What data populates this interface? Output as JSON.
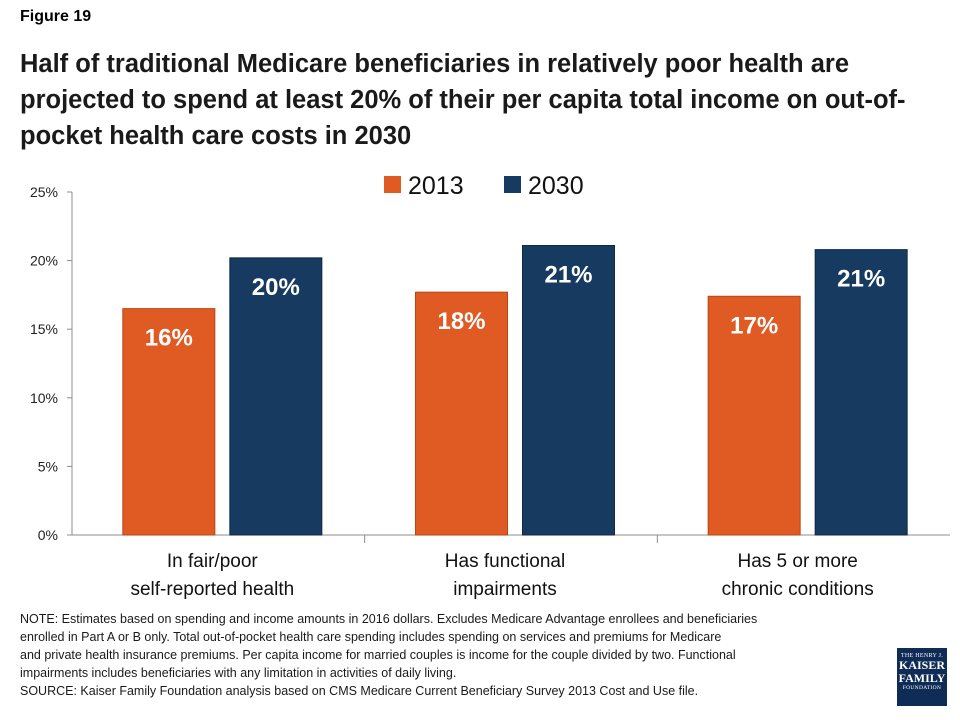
{
  "figure_label": "Figure 19",
  "title": "Half of traditional Medicare beneficiaries in relatively poor health are projected to spend at least 20% of their per capita total income on out-of-pocket health care costs in 2030",
  "note_lines": [
    "NOTE: Estimates based on spending and income amounts in 2016 dollars. Excludes Medicare Advantage enrollees and beneficiaries",
    "enrolled in Part A or B only. Total out-of-pocket health care spending includes spending on services and premiums for Medicare",
    "and private health insurance premiums. Per capita income for married couples is income for the couple divided by two. Functional",
    "impairments includes beneficiaries with any limitation in activities of daily living.",
    "SOURCE: Kaiser Family Foundation analysis based on CMS Medicare Current Beneficiary Survey 2013 Cost and Use file."
  ],
  "logo": {
    "line1": "THE HENRY J.",
    "line2": "KAISER",
    "line3": "FAMILY",
    "line4": "FOUNDATION"
  },
  "colors": {
    "series_2013": "#e05a23",
    "series_2030": "#173a60"
  },
  "chart_data": {
    "type": "bar",
    "categories": [
      [
        "In fair/poor",
        "self-reported health"
      ],
      [
        "Has functional",
        "impairments"
      ],
      [
        "Has 5 or more",
        "chronic conditions"
      ]
    ],
    "series": [
      {
        "name": "2013",
        "values": [
          16.5,
          17.7,
          17.4
        ],
        "labels": [
          "16%",
          "18%",
          "17%"
        ]
      },
      {
        "name": "2030",
        "values": [
          20.2,
          21.1,
          20.8
        ],
        "labels": [
          "20%",
          "21%",
          "21%"
        ]
      }
    ],
    "ylim": [
      0,
      25
    ],
    "yticks": [
      0,
      5,
      10,
      15,
      20,
      25
    ],
    "ytick_labels": [
      "0%",
      "5%",
      "10%",
      "15%",
      "20%",
      "25%"
    ],
    "legend_position": "top-center",
    "grid": false
  }
}
